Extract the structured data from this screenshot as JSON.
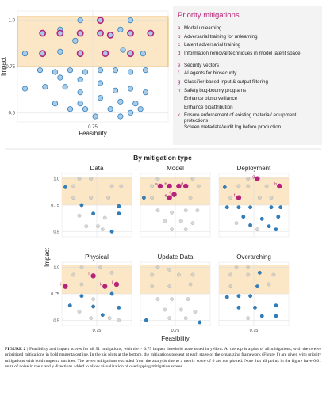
{
  "legend": {
    "title": "Priority mitigations",
    "items": [
      {
        "key": "a",
        "text": "Model unlearning"
      },
      {
        "key": "b",
        "text": "Adversarial training for unlearning"
      },
      {
        "key": "c",
        "text": "Latent adversarial training"
      },
      {
        "key": "d",
        "text": "Information removal techniques in model latent space"
      },
      {
        "key": "e",
        "text": "Security vectors"
      },
      {
        "key": "f",
        "text": "AI agents for biosecurity"
      },
      {
        "key": "g",
        "text": "Classifier-based input & output filtering"
      },
      {
        "key": "h",
        "text": "Safety bug-bounty programs"
      },
      {
        "key": "i",
        "text": "Enhance biosurveillance"
      },
      {
        "key": "j",
        "text": "Enhance bioattribution"
      },
      {
        "key": "k",
        "text": "Ensure enforcement of existing material/ equipment protections"
      },
      {
        "key": "l",
        "text": "Screen metadata/audit log before production"
      }
    ]
  },
  "section_title": "By mitigation type",
  "colors": {
    "zone": "#fbe7c6",
    "zone_border": "#e9a23b",
    "blue": "#2f7fbf",
    "magenta": "#b5247a",
    "grey": "#c8c8c8",
    "legend_bg": "#f3f3f3"
  },
  "chart_data": [
    {
      "type": "scatter",
      "title": "",
      "xlabel": "Feasibility",
      "ylabel": "Impact",
      "xlim": [
        0.45,
        1.05
      ],
      "ylim": [
        0.45,
        1.05
      ],
      "xticks": [
        "0.75"
      ],
      "yticks": [
        "0.5",
        "0.75",
        "1.0"
      ],
      "threshold": 0.75,
      "priority": [
        {
          "x": 0.78,
          "y": 1.0
        },
        {
          "x": 0.55,
          "y": 0.93
        },
        {
          "x": 0.62,
          "y": 0.93
        },
        {
          "x": 0.7,
          "y": 0.93
        },
        {
          "x": 0.78,
          "y": 0.93
        },
        {
          "x": 0.82,
          "y": 0.92
        },
        {
          "x": 0.9,
          "y": 0.93
        },
        {
          "x": 0.98,
          "y": 0.93
        },
        {
          "x": 0.55,
          "y": 0.82
        },
        {
          "x": 0.7,
          "y": 0.82
        },
        {
          "x": 0.8,
          "y": 0.82
        },
        {
          "x": 0.9,
          "y": 0.82
        }
      ],
      "others": [
        {
          "x": 0.7,
          "y": 1.0
        },
        {
          "x": 0.9,
          "y": 1.0
        },
        {
          "x": 0.62,
          "y": 0.95
        },
        {
          "x": 0.86,
          "y": 0.95
        },
        {
          "x": 0.68,
          "y": 0.89
        },
        {
          "x": 0.48,
          "y": 0.82
        },
        {
          "x": 0.62,
          "y": 0.83
        },
        {
          "x": 0.87,
          "y": 0.84
        },
        {
          "x": 0.95,
          "y": 0.82
        },
        {
          "x": 0.54,
          "y": 0.73
        },
        {
          "x": 0.6,
          "y": 0.72
        },
        {
          "x": 0.66,
          "y": 0.73
        },
        {
          "x": 0.72,
          "y": 0.72
        },
        {
          "x": 0.78,
          "y": 0.73
        },
        {
          "x": 0.84,
          "y": 0.73
        },
        {
          "x": 0.9,
          "y": 0.72
        },
        {
          "x": 0.96,
          "y": 0.73
        },
        {
          "x": 0.62,
          "y": 0.69
        },
        {
          "x": 0.7,
          "y": 0.68
        },
        {
          "x": 0.78,
          "y": 0.66
        },
        {
          "x": 0.56,
          "y": 0.64
        },
        {
          "x": 0.64,
          "y": 0.64
        },
        {
          "x": 0.48,
          "y": 0.63
        },
        {
          "x": 0.7,
          "y": 0.61
        },
        {
          "x": 0.84,
          "y": 0.62
        },
        {
          "x": 0.9,
          "y": 0.63
        },
        {
          "x": 0.96,
          "y": 0.61
        },
        {
          "x": 0.78,
          "y": 0.58
        },
        {
          "x": 0.7,
          "y": 0.55
        },
        {
          "x": 0.86,
          "y": 0.56
        },
        {
          "x": 0.92,
          "y": 0.55
        },
        {
          "x": 0.6,
          "y": 0.55
        },
        {
          "x": 0.66,
          "y": 0.52
        },
        {
          "x": 0.72,
          "y": 0.52
        },
        {
          "x": 0.82,
          "y": 0.52
        },
        {
          "x": 0.9,
          "y": 0.5
        },
        {
          "x": 0.94,
          "y": 0.52
        },
        {
          "x": 0.76,
          "y": 0.48
        },
        {
          "x": 0.86,
          "y": 0.48
        }
      ]
    },
    {
      "type": "scatter",
      "title": "Data",
      "xlim": [
        0.45,
        1.05
      ],
      "ylim": [
        0.45,
        1.05
      ],
      "threshold": 0.75,
      "priority": [],
      "blue": [
        {
          "x": 0.48,
          "y": 0.92
        },
        {
          "x": 0.62,
          "y": 0.75
        },
        {
          "x": 0.72,
          "y": 0.67
        },
        {
          "x": 0.94,
          "y": 0.67
        },
        {
          "x": 0.94,
          "y": 0.74
        },
        {
          "x": 0.88,
          "y": 0.5
        }
      ],
      "grey": [
        {
          "x": 0.6,
          "y": 1.0
        },
        {
          "x": 0.7,
          "y": 1.0
        },
        {
          "x": 0.55,
          "y": 0.93
        },
        {
          "x": 0.88,
          "y": 0.93
        },
        {
          "x": 0.96,
          "y": 0.93
        },
        {
          "x": 0.55,
          "y": 0.82
        },
        {
          "x": 0.7,
          "y": 0.82
        },
        {
          "x": 0.85,
          "y": 0.82
        },
        {
          "x": 0.6,
          "y": 0.65
        },
        {
          "x": 0.82,
          "y": 0.63
        },
        {
          "x": 0.66,
          "y": 0.55
        },
        {
          "x": 0.76,
          "y": 0.55
        },
        {
          "x": 0.8,
          "y": 0.52
        }
      ]
    },
    {
      "type": "scatter",
      "title": "Model",
      "xlim": [
        0.45,
        1.05
      ],
      "ylim": [
        0.45,
        1.05
      ],
      "threshold": 0.75,
      "priority": [
        {
          "x": 0.62,
          "y": 0.93,
          "label": "a"
        },
        {
          "x": 0.7,
          "y": 0.93,
          "label": "b"
        },
        {
          "x": 0.78,
          "y": 0.93,
          "label": ""
        },
        {
          "x": 0.84,
          "y": 0.93,
          "label": "d"
        },
        {
          "x": 0.74,
          "y": 0.85,
          "label": "c"
        },
        {
          "x": 0.7,
          "y": 0.82,
          "label": "e"
        }
      ],
      "blue": [
        {
          "x": 0.48,
          "y": 0.82
        }
      ],
      "grey": [
        {
          "x": 0.6,
          "y": 1.0
        },
        {
          "x": 0.9,
          "y": 1.0
        },
        {
          "x": 0.55,
          "y": 0.93
        },
        {
          "x": 0.95,
          "y": 0.93
        },
        {
          "x": 0.55,
          "y": 0.82
        },
        {
          "x": 0.88,
          "y": 0.82
        },
        {
          "x": 0.6,
          "y": 0.7
        },
        {
          "x": 0.72,
          "y": 0.68
        },
        {
          "x": 0.84,
          "y": 0.7
        },
        {
          "x": 0.94,
          "y": 0.7
        },
        {
          "x": 0.66,
          "y": 0.6
        },
        {
          "x": 0.8,
          "y": 0.6
        },
        {
          "x": 0.9,
          "y": 0.58
        },
        {
          "x": 0.72,
          "y": 0.52
        },
        {
          "x": 0.84,
          "y": 0.52
        }
      ]
    },
    {
      "type": "scatter",
      "title": "Deployment",
      "xlim": [
        0.45,
        1.05
      ],
      "ylim": [
        0.45,
        1.05
      ],
      "threshold": 0.75,
      "priority": [
        {
          "x": 0.78,
          "y": 1.0,
          "label": "g"
        },
        {
          "x": 0.97,
          "y": 0.93,
          "label": "h"
        },
        {
          "x": 0.62,
          "y": 0.82,
          "label": "f"
        }
      ],
      "blue": [
        {
          "x": 0.5,
          "y": 0.92
        },
        {
          "x": 0.52,
          "y": 0.73
        },
        {
          "x": 0.62,
          "y": 0.73
        },
        {
          "x": 0.72,
          "y": 0.73
        },
        {
          "x": 0.9,
          "y": 0.73
        },
        {
          "x": 0.98,
          "y": 0.73
        },
        {
          "x": 0.66,
          "y": 0.64
        },
        {
          "x": 0.82,
          "y": 0.62
        },
        {
          "x": 0.96,
          "y": 0.64
        },
        {
          "x": 0.72,
          "y": 0.56
        },
        {
          "x": 0.88,
          "y": 0.55
        },
        {
          "x": 0.94,
          "y": 0.52
        }
      ],
      "grey": [
        {
          "x": 0.7,
          "y": 1.0
        },
        {
          "x": 0.62,
          "y": 0.93
        },
        {
          "x": 0.7,
          "y": 0.93
        },
        {
          "x": 0.86,
          "y": 0.93
        },
        {
          "x": 0.55,
          "y": 0.82
        },
        {
          "x": 0.8,
          "y": 0.82
        },
        {
          "x": 0.9,
          "y": 0.82
        },
        {
          "x": 0.6,
          "y": 0.58
        },
        {
          "x": 0.78,
          "y": 0.52
        }
      ]
    },
    {
      "type": "scatter",
      "title": "Physical",
      "xlim": [
        0.45,
        1.05
      ],
      "ylim": [
        0.45,
        1.05
      ],
      "threshold": 0.75,
      "priority": [
        {
          "x": 0.72,
          "y": 0.92,
          "label": "l"
        },
        {
          "x": 0.48,
          "y": 0.82,
          "label": "i"
        },
        {
          "x": 0.82,
          "y": 0.82,
          "label": "k"
        },
        {
          "x": 0.92,
          "y": 0.84,
          "label": "j"
        }
      ],
      "blue": [
        {
          "x": 0.62,
          "y": 0.73
        },
        {
          "x": 0.88,
          "y": 0.75
        },
        {
          "x": 0.52,
          "y": 0.64
        },
        {
          "x": 0.72,
          "y": 0.63
        },
        {
          "x": 0.94,
          "y": 0.62
        },
        {
          "x": 0.8,
          "y": 0.55
        }
      ],
      "grey": [
        {
          "x": 0.62,
          "y": 1.0
        },
        {
          "x": 0.78,
          "y": 1.0
        },
        {
          "x": 0.55,
          "y": 0.93
        },
        {
          "x": 0.88,
          "y": 0.95
        },
        {
          "x": 0.62,
          "y": 0.84
        },
        {
          "x": 0.72,
          "y": 0.7
        },
        {
          "x": 0.6,
          "y": 0.58
        },
        {
          "x": 0.7,
          "y": 0.52
        },
        {
          "x": 0.86,
          "y": 0.52
        },
        {
          "x": 0.94,
          "y": 0.5
        }
      ]
    },
    {
      "type": "scatter",
      "title": "Update Data",
      "xlim": [
        0.45,
        1.05
      ],
      "ylim": [
        0.45,
        1.05
      ],
      "threshold": 0.75,
      "priority": [],
      "blue": [
        {
          "x": 0.5,
          "y": 0.5
        },
        {
          "x": 0.96,
          "y": 0.48
        }
      ],
      "grey": [
        {
          "x": 0.6,
          "y": 1.0
        },
        {
          "x": 0.7,
          "y": 0.98
        },
        {
          "x": 0.55,
          "y": 0.93
        },
        {
          "x": 0.78,
          "y": 0.93
        },
        {
          "x": 0.9,
          "y": 0.93
        },
        {
          "x": 0.55,
          "y": 0.82
        },
        {
          "x": 0.7,
          "y": 0.82
        },
        {
          "x": 0.88,
          "y": 0.84
        },
        {
          "x": 0.6,
          "y": 0.7
        },
        {
          "x": 0.72,
          "y": 0.7
        },
        {
          "x": 0.86,
          "y": 0.7
        },
        {
          "x": 0.66,
          "y": 0.6
        },
        {
          "x": 0.8,
          "y": 0.6
        },
        {
          "x": 0.92,
          "y": 0.58
        },
        {
          "x": 0.7,
          "y": 0.52
        },
        {
          "x": 0.84,
          "y": 0.52
        }
      ]
    },
    {
      "type": "scatter",
      "title": "Overarching",
      "xlim": [
        0.45,
        1.05
      ],
      "ylim": [
        0.45,
        1.05
      ],
      "threshold": 0.75,
      "priority": [],
      "blue": [
        {
          "x": 0.8,
          "y": 0.95
        },
        {
          "x": 0.78,
          "y": 0.82
        },
        {
          "x": 0.52,
          "y": 0.72
        },
        {
          "x": 0.62,
          "y": 0.73
        },
        {
          "x": 0.72,
          "y": 0.73
        },
        {
          "x": 0.62,
          "y": 0.62
        },
        {
          "x": 0.76,
          "y": 0.62
        },
        {
          "x": 0.94,
          "y": 0.64
        },
        {
          "x": 0.82,
          "y": 0.54
        },
        {
          "x": 0.94,
          "y": 0.54
        }
      ],
      "grey": [
        {
          "x": 0.6,
          "y": 1.0
        },
        {
          "x": 0.7,
          "y": 1.0
        },
        {
          "x": 0.55,
          "y": 0.93
        },
        {
          "x": 0.7,
          "y": 0.93
        },
        {
          "x": 0.92,
          "y": 0.93
        },
        {
          "x": 0.55,
          "y": 0.82
        },
        {
          "x": 0.88,
          "y": 0.84
        },
        {
          "x": 0.7,
          "y": 0.52
        }
      ]
    }
  ],
  "small_axes": {
    "xlabel": "Feasibility",
    "ylabel": "Impact",
    "xticks": [
      "0.75"
    ],
    "yticks": [
      "0.5",
      "0.75",
      "1.0"
    ]
  },
  "caption": {
    "lead": "FIGURE 2",
    "text": "| Feasibility and impact scores for all 51 mitigations, with the > 0.75 impact threshold zone noted in yellow. At the top is a plot of all mitigations, with the twelve prioritized mitigations in bold magenta outline. In the six plots at the bottom, the mitigations present at each stage of the organizing framework (Figure 1) are given with priority mitigations with bold magenta outlines. The seven mitigations excluded from the analysis due to a metric score of 0 are not plotted. Note that all points in the figure have 0.01 units of noise in the x and y directions added to allow visualization of overlapping mitigation scores."
  }
}
